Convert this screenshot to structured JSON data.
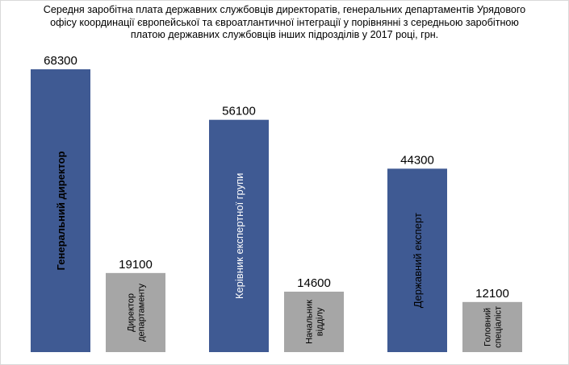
{
  "title_lines": [
    "Середня заробітна плата  державних службовців директоратів, генеральних департаментів  Урядового",
    "офісу координації європейської та євроатлантичної інтеграції у порівнянні з середньою заробітною",
    "платою державних службовців  інших  підрозділів у 2017 році, грн."
  ],
  "chart_data": {
    "type": "bar",
    "ylim": [
      0,
      70000
    ],
    "grid": false,
    "legend": "none",
    "groups": [
      {
        "bars": [
          {
            "label": "Генеральний директор",
            "value": 68300,
            "color": "#3f5a93",
            "text_color": "#000000",
            "bold": true
          },
          {
            "label_lines": [
              "Директор",
              "департаменту"
            ],
            "value": 19100,
            "color": "#a6a6a6",
            "text_color": "#000000",
            "bold": false
          }
        ]
      },
      {
        "bars": [
          {
            "label": "Керівник експертної групи",
            "value": 56100,
            "color": "#3f5a93",
            "text_color": "#ffffff",
            "bold": false
          },
          {
            "label_lines": [
              "Начальник",
              "відділу"
            ],
            "value": 14600,
            "color": "#a6a6a6",
            "text_color": "#000000",
            "bold": false
          }
        ]
      },
      {
        "bars": [
          {
            "label": "Державний експерт",
            "value": 44300,
            "color": "#3f5a93",
            "text_color": "#000000",
            "bold": false
          },
          {
            "label_lines": [
              "Головний",
              "спеціаліст"
            ],
            "value": 12100,
            "color": "#a6a6a6",
            "text_color": "#000000",
            "bold": false
          }
        ]
      }
    ]
  }
}
